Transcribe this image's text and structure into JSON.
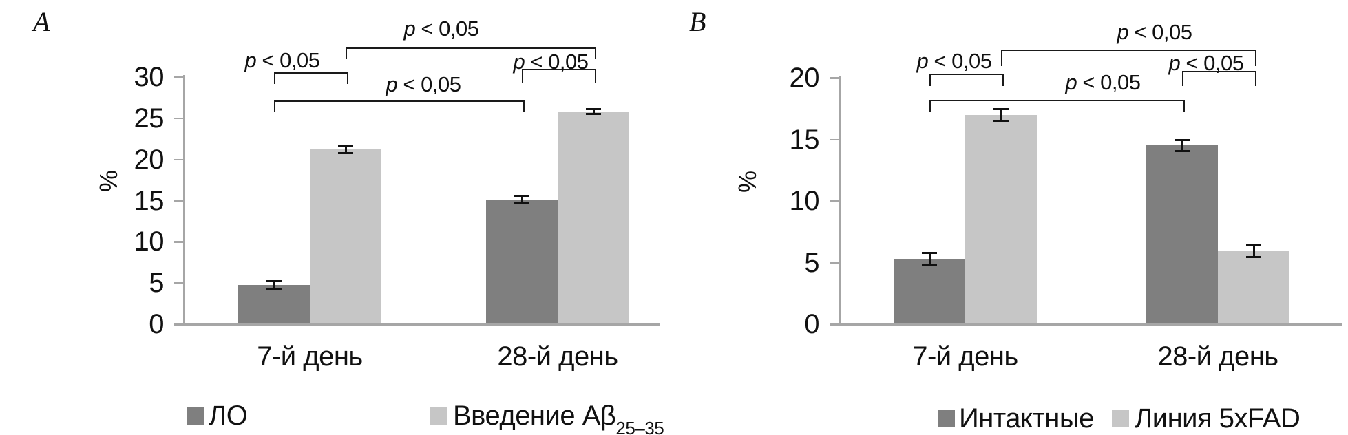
{
  "page": {
    "background": "#ffffff",
    "axis_color": "#a6a6a6",
    "text_color": "#111111",
    "bracket_color": "#1a1a1a"
  },
  "chart_data": [
    {
      "type": "bar",
      "panel": "A",
      "title": "",
      "xlabel": "",
      "ylabel": "%",
      "ylim": [
        0,
        30
      ],
      "ytick_step": 5,
      "ytick_labels": [
        "0",
        "5",
        "10",
        "15",
        "20",
        "25",
        "30"
      ],
      "grid": false,
      "legend_position": "bottom",
      "categories": [
        "7-й день",
        "28-й день"
      ],
      "series": [
        {
          "name": "ЛО",
          "color": "#7f7f7f",
          "values": [
            4.8,
            15.1
          ],
          "errors": [
            0.5,
            0.5
          ]
        },
        {
          "name": "Введение Aβ25–35",
          "color": "#c6c6c6",
          "values": [
            21.2,
            25.8
          ],
          "errors": [
            0.5,
            0.35
          ]
        }
      ],
      "legend": [
        {
          "label": "ЛО",
          "subscript": ""
        },
        {
          "label": "Введение Aβ",
          "subscript": "25–35"
        }
      ],
      "significance_brackets": [
        {
          "label": "p < 0,05",
          "from": "7-й день: ЛО",
          "to": "7-й день: Введение Aβ"
        },
        {
          "label": "p < 0,05",
          "from": "7-й день: Введение Aβ",
          "to": "28-й день: Введение Aβ"
        },
        {
          "label": "p < 0,05",
          "from": "28-й день: ЛО",
          "to": "28-й день: Введение Aβ"
        },
        {
          "label": "p < 0,05",
          "from": "7-й день: ЛО",
          "to": "28-й день: ЛО"
        }
      ]
    },
    {
      "type": "bar",
      "panel": "B",
      "title": "",
      "xlabel": "",
      "ylabel": "%",
      "ylim": [
        0,
        20
      ],
      "ytick_step": 5,
      "ytick_labels": [
        "0",
        "5",
        "10",
        "15",
        "20"
      ],
      "grid": false,
      "legend_position": "bottom",
      "categories": [
        "7-й день",
        "28-й день"
      ],
      "series": [
        {
          "name": "Интактные",
          "color": "#7f7f7f",
          "values": [
            5.3,
            14.5
          ],
          "errors": [
            0.5,
            0.5
          ]
        },
        {
          "name": "Линия 5xFAD",
          "color": "#c6c6c6",
          "values": [
            17.0,
            5.9
          ],
          "errors": [
            0.5,
            0.5
          ]
        }
      ],
      "legend": [
        {
          "label": "Интактные",
          "subscript": ""
        },
        {
          "label": "Линия 5xFAD",
          "subscript": ""
        }
      ],
      "significance_brackets": [
        {
          "label": "p < 0,05",
          "from": "7-й день: Интактные",
          "to": "7-й день: Линия 5xFAD"
        },
        {
          "label": "p < 0,05",
          "from": "7-й день: Линия 5xFAD",
          "to": "28-й день: Линия 5xFAD"
        },
        {
          "label": "p < 0,05",
          "from": "28-й день: Интактные",
          "to": "28-й день: Линия 5xFAD"
        },
        {
          "label": "p < 0,05",
          "from": "7-й день: Интактные",
          "to": "28-й день: Интактные"
        }
      ]
    }
  ]
}
